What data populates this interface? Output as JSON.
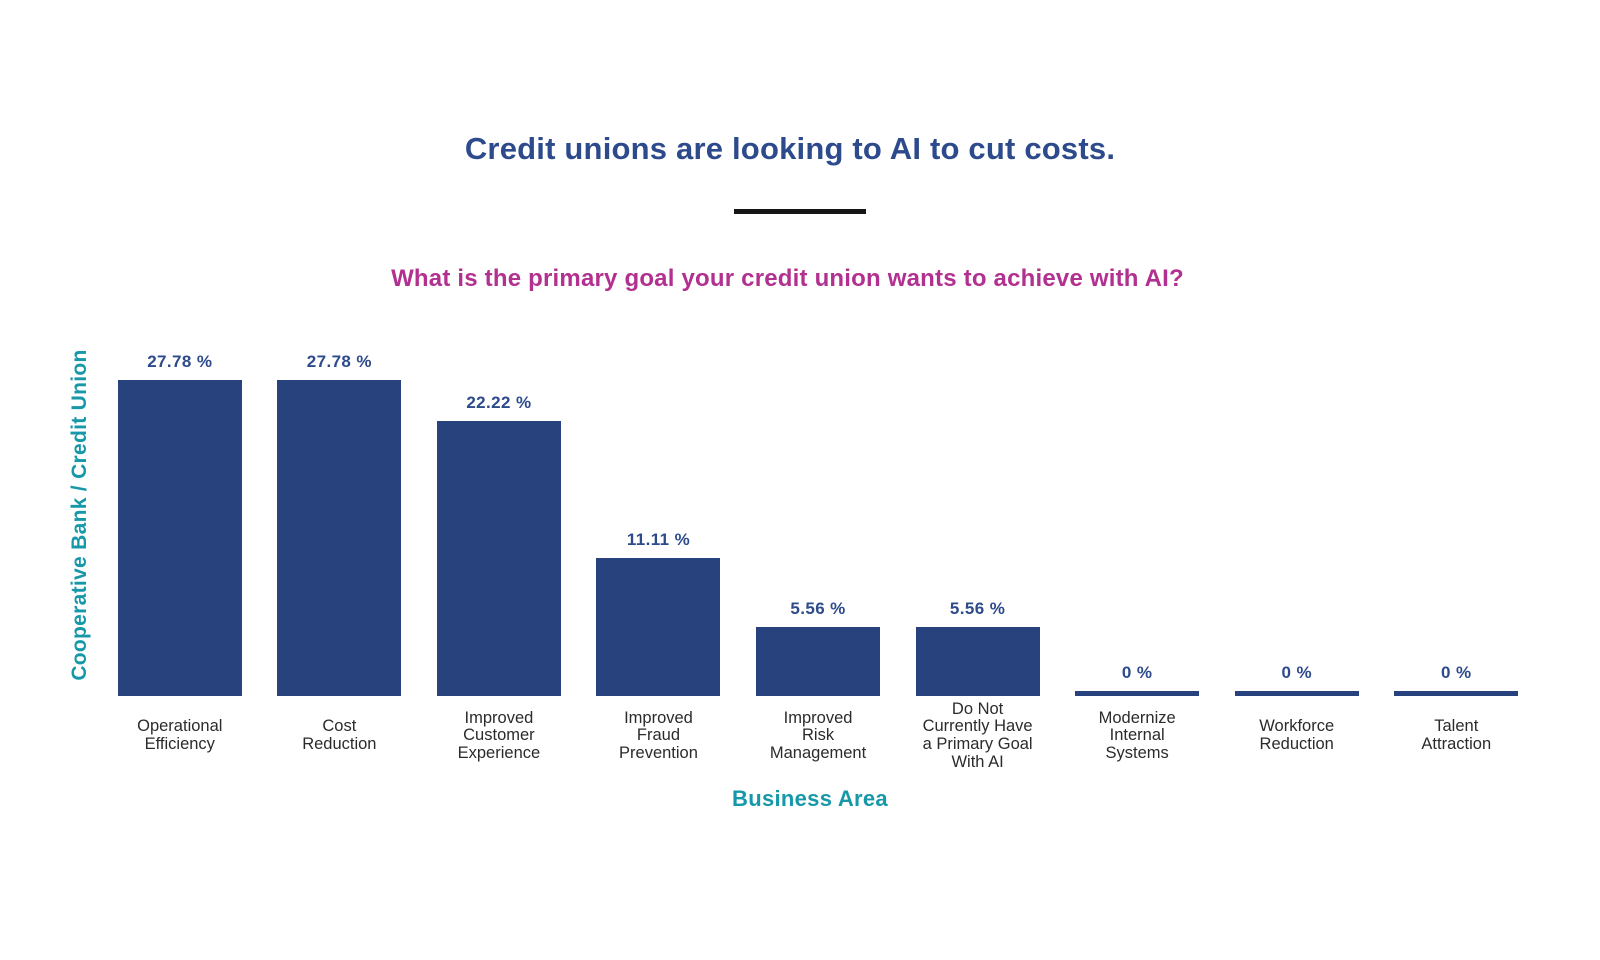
{
  "header": {
    "headline": "Credit unions are looking to AI to cut costs."
  },
  "chart_data": {
    "type": "bar",
    "title": "What is the primary goal your credit union wants to achieve with AI?",
    "xlabel": "Business Area",
    "ylabel": "Cooperative Bank / Credit Union",
    "categories": [
      "Operational\nEfficiency",
      "Cost\nReduction",
      "Improved\nCustomer\nExperience",
      "Improved\nFraud\nPrevention",
      "Improved\nRisk\nManagement",
      "Do Not\nCurrently Have\na Primary Goal\nWith AI",
      "Modernize\nInternal\nSystems",
      "Workforce\nReduction",
      "Talent\nAttraction"
    ],
    "values": [
      27.78,
      27.78,
      22.22,
      11.11,
      5.56,
      5.56,
      0,
      0,
      0
    ],
    "value_labels": [
      "27.78 %",
      "27.78 %",
      "22.22 %",
      "11.11 %",
      "5.56 %",
      "5.56 %",
      "0 %",
      "0 %",
      "0 %"
    ],
    "ylim": [
      0,
      27.78
    ],
    "grid": false,
    "legend": "none",
    "colors": {
      "bar": "#28427e",
      "value_label": "#2d4b8c",
      "headline": "#2d4b8c",
      "question": "#b2308f",
      "axis_labels": "#1798a9",
      "category_label": "#2b2b2b",
      "divider": "#151515",
      "background": "#ffffff"
    }
  }
}
